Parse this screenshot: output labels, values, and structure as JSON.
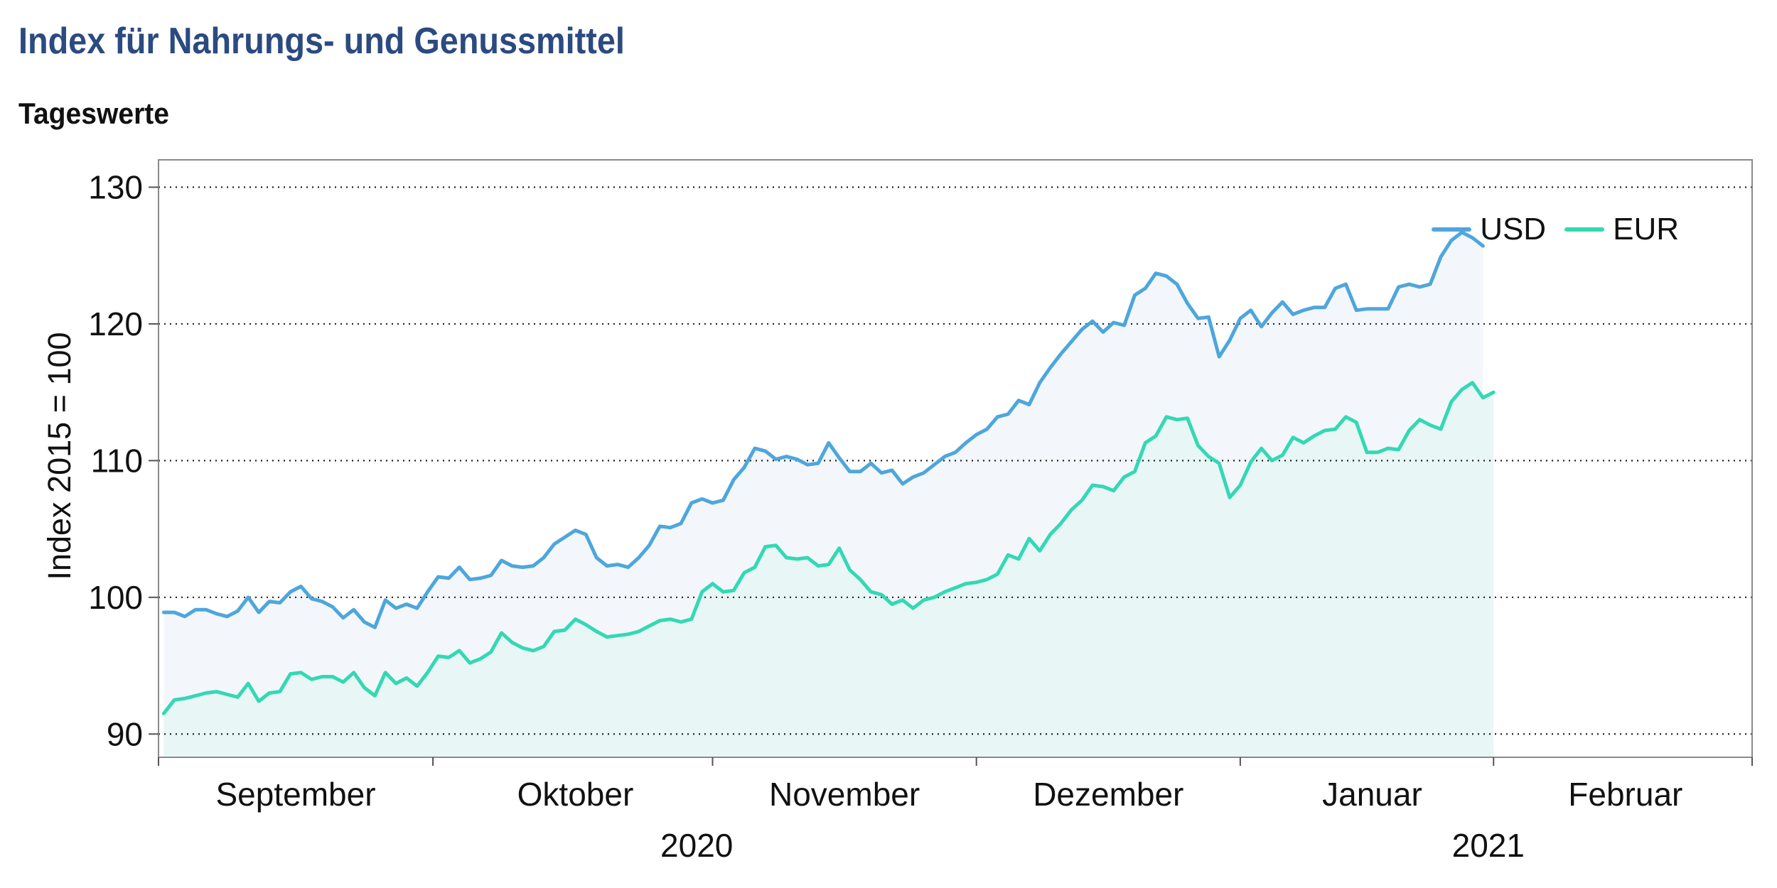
{
  "title": "Index für Nahrungs- und Genussmittel",
  "subtitle": "Tageswerte",
  "colors": {
    "usd": "#4ea6dc",
    "eur": "#34d8b4",
    "title": "#2b4a80",
    "usd_fill": "#f3f7fb",
    "eur_fill": "#e8f6f5"
  },
  "chart_data": {
    "type": "area",
    "ylabel": "Index 2015 = 100",
    "ylim": [
      88.3,
      132
    ],
    "yticks": [
      90,
      100,
      110,
      120,
      130
    ],
    "xlim": [
      0,
      151
    ],
    "grid": "horizontal dotted",
    "legend_position": "top-right",
    "month_labels": [
      {
        "label": "September",
        "center": 13
      },
      {
        "label": "Oktober",
        "center": 39.5
      },
      {
        "label": "November",
        "center": 65
      },
      {
        "label": "Dezember",
        "center": 90
      },
      {
        "label": "Januar",
        "center": 115
      },
      {
        "label": "Februar",
        "center": 139
      }
    ],
    "month_boundaries": [
      0,
      26,
      52.5,
      77.5,
      102.5,
      126.5,
      151
    ],
    "year_labels": [
      {
        "label": "2020",
        "center": 51
      },
      {
        "label": "2021",
        "center": 126
      }
    ],
    "series": [
      {
        "name": "USD",
        "color": "#4ea6dc",
        "fill": "#f3f7fb",
        "x_start": 0.5,
        "x_step": 1,
        "values": [
          98.9,
          98.9,
          98.6,
          99.1,
          99.1,
          98.8,
          98.6,
          99,
          100,
          98.9,
          99.7,
          99.6,
          100.4,
          100.8,
          99.9,
          99.7,
          99.3,
          98.5,
          99.1,
          98.2,
          97.8,
          99.8,
          99.2,
          99.5,
          99.2,
          100.4,
          101.5,
          101.4,
          102.2,
          101.3,
          101.4,
          101.6,
          102.7,
          102.3,
          102.2,
          102.3,
          102.9,
          103.9,
          104.4,
          104.9,
          104.6,
          102.9,
          102.3,
          102.4,
          102.2,
          102.9,
          103.8,
          105.2,
          105.1,
          105.4,
          106.9,
          107.2,
          106.9,
          107.1,
          108.6,
          109.5,
          110.9,
          110.7,
          110.1,
          110.3,
          110.1,
          109.7,
          109.8,
          111.3,
          110.2,
          109.2,
          109.2,
          109.8,
          109.1,
          109.3,
          108.3,
          108.8,
          109.1,
          109.7,
          110.3,
          110.6,
          111.3,
          111.9,
          112.3,
          113.2,
          113.4,
          114.4,
          114.1,
          115.7,
          116.8,
          117.8,
          118.7,
          119.6,
          120.2,
          119.4,
          120.1,
          119.9,
          122.1,
          122.6,
          123.7,
          123.5,
          122.9,
          121.5,
          120.4,
          120.5,
          117.6,
          118.8,
          120.4,
          121,
          119.8,
          120.8,
          121.6,
          120.7,
          121,
          121.2,
          121.2,
          122.6,
          122.9,
          121,
          121.1,
          121.1,
          121.1,
          122.7,
          122.9,
          122.7,
          122.9,
          124.9,
          126.1,
          126.7,
          126.3,
          125.7
        ]
      },
      {
        "name": "EUR",
        "color": "#34d8b4",
        "fill": "#e8f6f5",
        "x_start": 0.5,
        "x_step": 1,
        "values": [
          91.5,
          92.5,
          92.6,
          92.8,
          93,
          93.1,
          92.9,
          92.7,
          93.7,
          92.4,
          93,
          93.1,
          94.4,
          94.5,
          94,
          94.2,
          94.2,
          93.8,
          94.5,
          93.4,
          92.8,
          94.5,
          93.7,
          94.1,
          93.5,
          94.5,
          95.7,
          95.6,
          96.1,
          95.2,
          95.5,
          96,
          97.4,
          96.7,
          96.3,
          96.1,
          96.4,
          97.5,
          97.6,
          98.4,
          98,
          97.5,
          97.1,
          97.2,
          97.3,
          97.5,
          97.9,
          98.3,
          98.4,
          98.2,
          98.4,
          100.4,
          101,
          100.4,
          100.5,
          101.8,
          102.2,
          103.7,
          103.8,
          102.9,
          102.8,
          102.9,
          102.3,
          102.4,
          103.6,
          102,
          101.3,
          100.4,
          100.2,
          99.5,
          99.8,
          99.2,
          99.8,
          100,
          100.4,
          100.7,
          101,
          101.1,
          101.3,
          101.7,
          103.1,
          102.8,
          104.3,
          103.4,
          104.6,
          105.4,
          106.4,
          107.1,
          108.2,
          108.1,
          107.8,
          108.8,
          109.2,
          111.3,
          111.8,
          113.2,
          113,
          113.1,
          111.1,
          110.3,
          109.8,
          107.3,
          108.2,
          109.9,
          110.9,
          110,
          110.4,
          111.7,
          111.3,
          111.8,
          112.2,
          112.3,
          113.2,
          112.8,
          110.6,
          110.6,
          110.9,
          110.8,
          112.2,
          113,
          112.6,
          112.3,
          114.3,
          115.2,
          115.7,
          114.6,
          115
        ]
      }
    ]
  }
}
